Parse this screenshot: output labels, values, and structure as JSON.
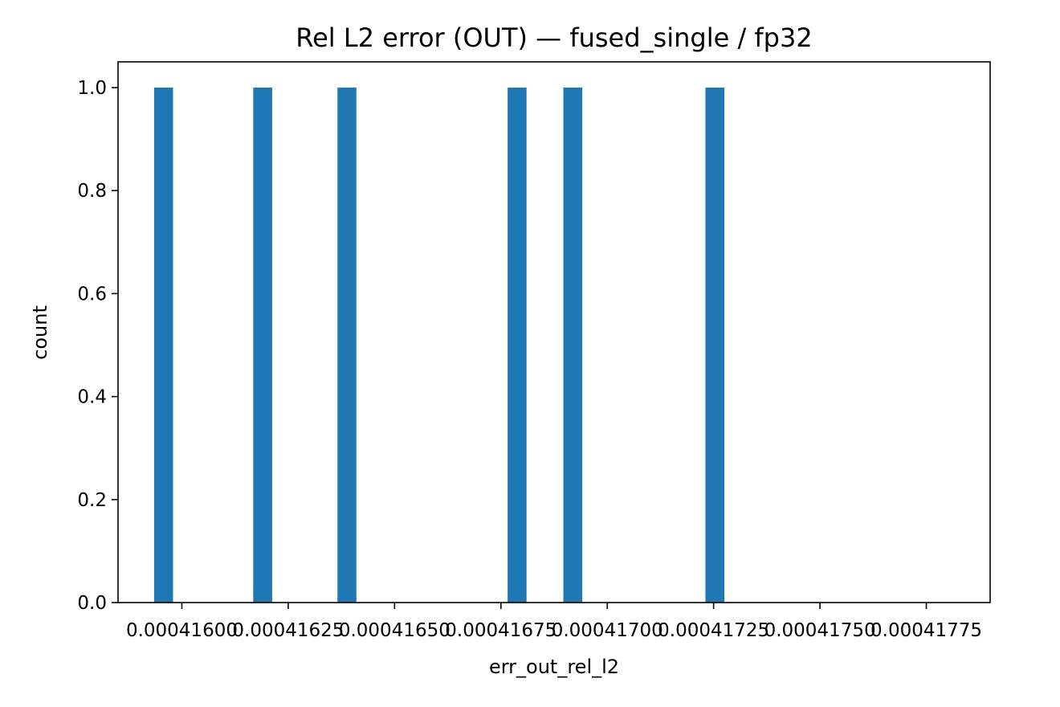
{
  "colors": {
    "bar": "#1f77b4",
    "axis": "#000000",
    "background": "#ffffff"
  },
  "chart_data": {
    "type": "bar",
    "title": "Rel L2 error (OUT) — fused_single / fp32",
    "xlabel": "err_out_rel_l2",
    "ylabel": "count",
    "xlim": [
      0.00041585,
      0.0004179
    ],
    "ylim": [
      0,
      1.05
    ],
    "x_ticks": [
      0.000416,
      0.00041625,
      0.0004165,
      0.00041675,
      0.000417,
      0.00041725,
      0.0004175,
      0.00041775
    ],
    "x_tick_labels": [
      "0.00041600",
      "0.00041625",
      "0.00041650",
      "0.00041675",
      "0.00041700",
      "0.00041725",
      "0.00041750",
      "0.00041775"
    ],
    "y_ticks": [
      0.0,
      0.2,
      0.4,
      0.6,
      0.8,
      1.0
    ],
    "y_tick_labels": [
      "0.0",
      "0.2",
      "0.4",
      "0.6",
      "0.8",
      "1.0"
    ],
    "bin_width": 4.45e-08,
    "bars": [
      {
        "x": 0.000415957,
        "count": 1
      },
      {
        "x": 0.00041619,
        "count": 1
      },
      {
        "x": 0.000416388,
        "count": 1
      },
      {
        "x": 0.000416788,
        "count": 1
      },
      {
        "x": 0.000416919,
        "count": 1
      },
      {
        "x": 0.000417253,
        "count": 1
      }
    ],
    "grid": false,
    "legend": "none"
  }
}
